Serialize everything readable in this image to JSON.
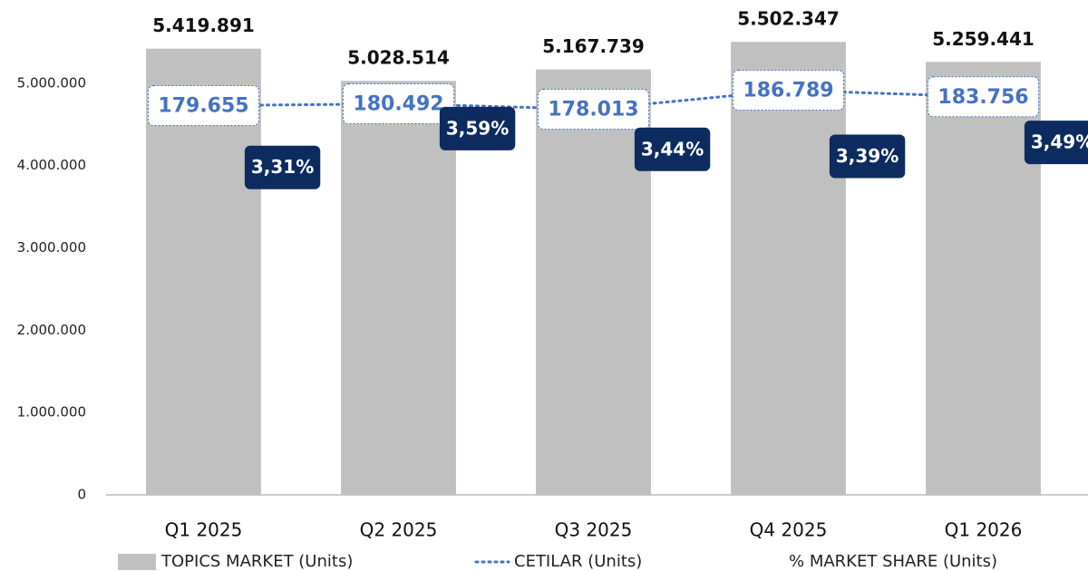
{
  "chart_data": {
    "type": "bar",
    "categories": [
      "Q1 2025",
      "Q2 2025",
      "Q3 2025",
      "Q4 2025",
      "Q1 2026"
    ],
    "series": [
      {
        "name": "TOPICS MARKET (Units)",
        "type": "bar",
        "color": "#c0c0c0",
        "values": [
          5419891,
          5028514,
          5167739,
          5502347,
          5259441
        ],
        "value_labels": [
          "5.419.891",
          "5.028.514",
          "5.167.739",
          "5.502.347",
          "5.259.441"
        ]
      },
      {
        "name": "CETILAR (Units)",
        "type": "line",
        "axis": "y2",
        "color": "#4472c4",
        "values": [
          179655,
          180492,
          178013,
          186789,
          183756
        ],
        "value_labels": [
          "179.655",
          "180.492",
          "178.013",
          "186.789",
          "183.756"
        ]
      },
      {
        "name": "% MARKET SHARE (Units)",
        "type": "label",
        "axis": "y3",
        "color": "#0d2b5e",
        "values": [
          3.31,
          3.59,
          3.44,
          3.39,
          3.49
        ],
        "value_labels": [
          "3,31%",
          "3,59%",
          "3,44%",
          "3,39%",
          "3,49%"
        ]
      }
    ],
    "ylim": [
      0,
      6000000
    ],
    "yticks": [
      0,
      {
        "value": 1000000,
        "label": "1.000.000"
      },
      {
        "value": 2000000,
        "label": "2.000.000"
      },
      {
        "value": 3000000,
        "label": "3.000.000"
      },
      {
        "value": 4000000,
        "label": "4.000.000"
      },
      {
        "value": 5000000,
        "label": "5.000.000"
      }
    ],
    "y2lim": [
      0,
      228000
    ],
    "y3lim": [
      0.95,
      4.51
    ],
    "grid": false,
    "legend": "bottom"
  }
}
